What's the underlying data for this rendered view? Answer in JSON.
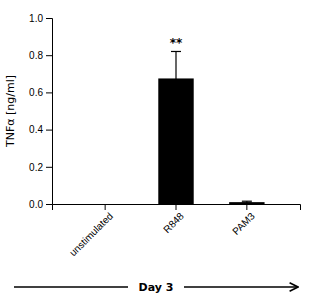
{
  "chart_data": {
    "type": "bar",
    "categories": [
      "unstimulated",
      "R848",
      "PAM3"
    ],
    "values": [
      0.0,
      0.675,
      0.01
    ],
    "errors": [
      0.0,
      0.145,
      0.005
    ],
    "color": "#000000",
    "y_label": "TNFα [ng/ml]",
    "ylim": [
      0.0,
      1.0
    ],
    "yticks": [
      {
        "value": 0.0,
        "label": "0.0"
      },
      0.2,
      0.4,
      0.6,
      0.8,
      {
        "value": 1.0,
        "label": "1.0"
      }
    ],
    "annotations": [
      {
        "text": "**",
        "category": "R848"
      },
      {
        "text": "Day 3"
      }
    ]
  }
}
